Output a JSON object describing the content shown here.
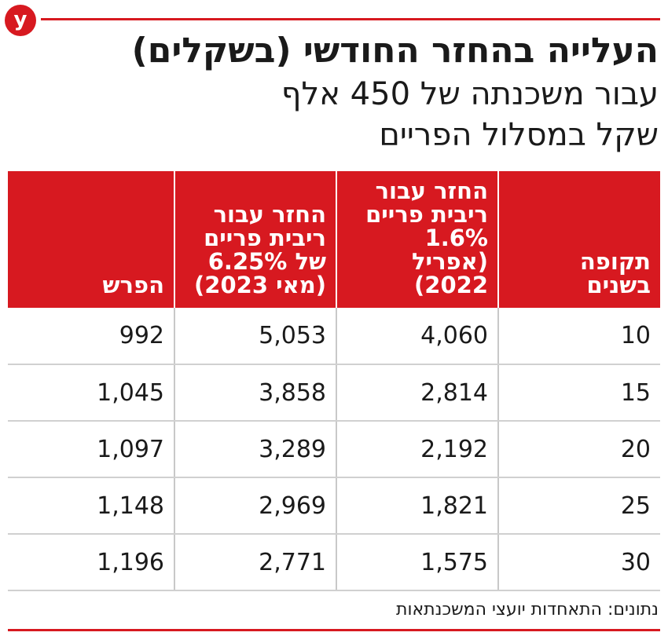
{
  "brand": {
    "logo_text": "y",
    "accent_color": "#d71920"
  },
  "title": "העלייה בהחזר החודשי (בשקלים)",
  "subtitle": "עבור משכנתה של 450 אלף שקל במסלול הפריים",
  "table": {
    "headers": [
      "תקופה בשנים",
      "החזר עבור ריבית פריים 1.6% (אפריל 2022)",
      "החזר עבור ריבית פריים של 6.25% (מאי 2023)",
      "הפרש"
    ],
    "rows": [
      [
        "10",
        "4,060",
        "5,053",
        "992"
      ],
      [
        "15",
        "2,814",
        "3,858",
        "1,045"
      ],
      [
        "20",
        "2,192",
        "3,289",
        "1,097"
      ],
      [
        "25",
        "1,821",
        "2,969",
        "1,148"
      ],
      [
        "30",
        "1,575",
        "2,771",
        "1,196"
      ]
    ]
  },
  "source": "נתונים: התאחדות יועצי המשכנתאות"
}
